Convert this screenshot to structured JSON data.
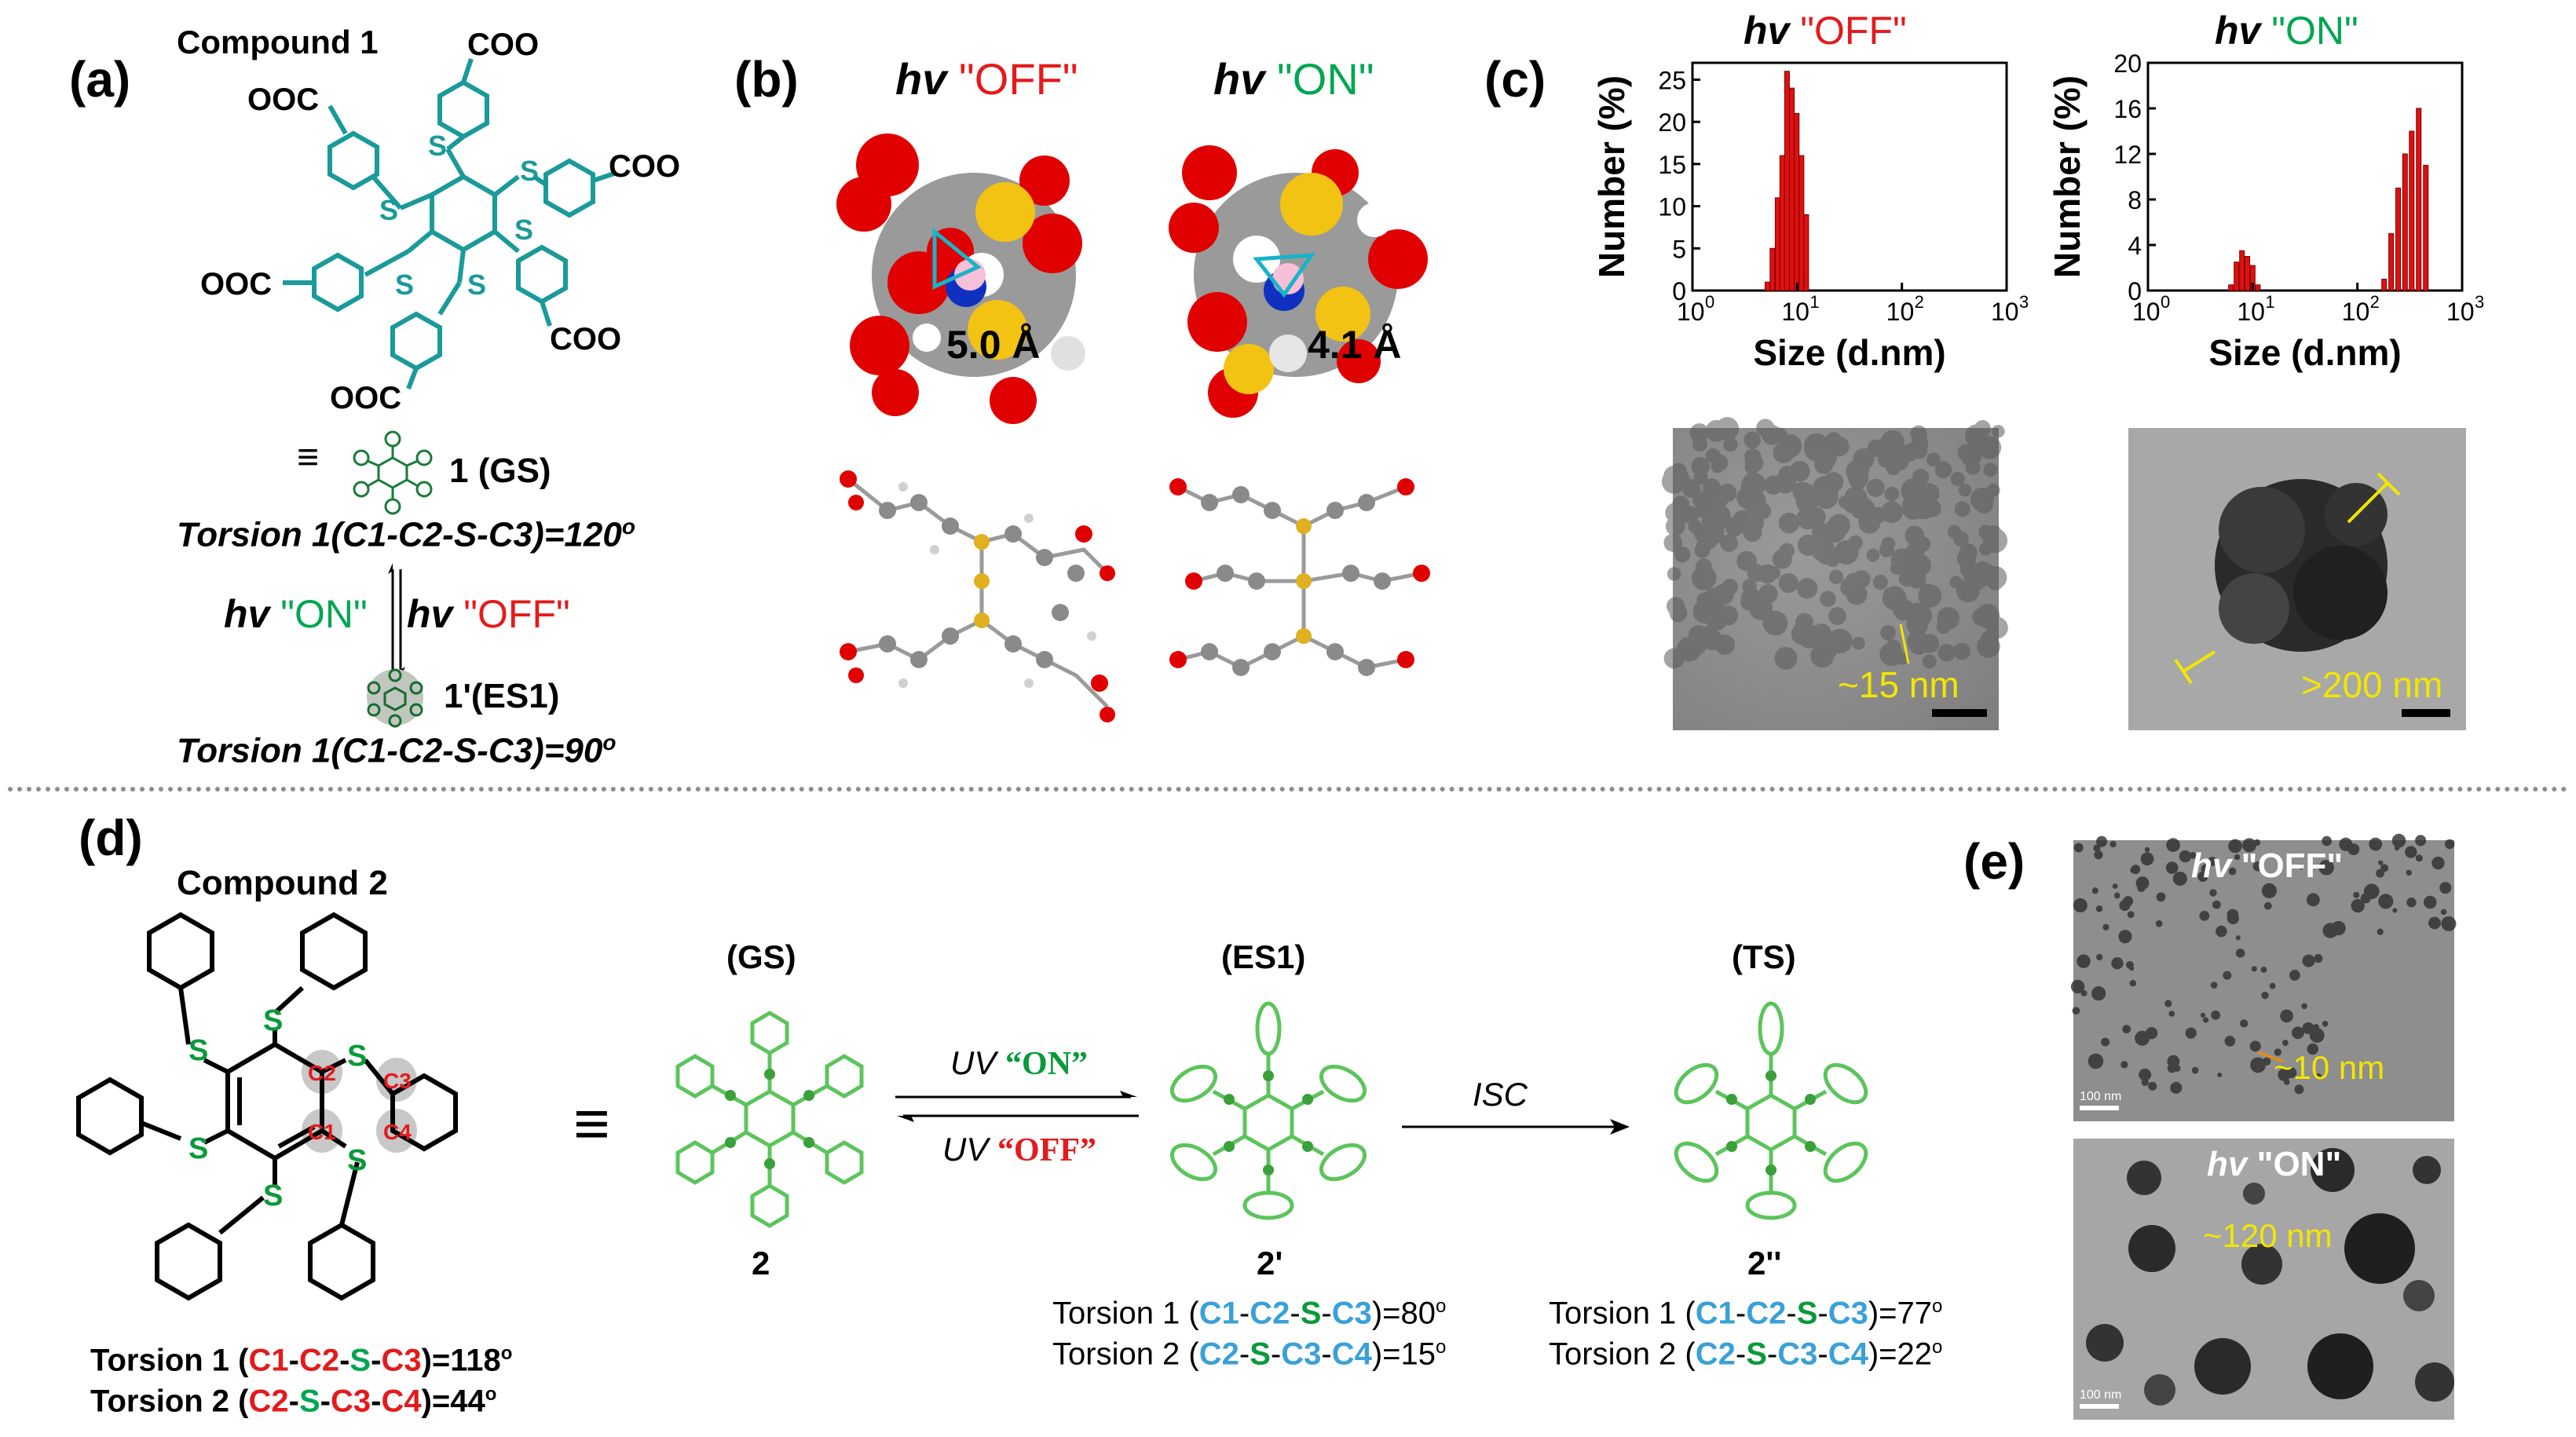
{
  "panels": {
    "a": "(a)",
    "b": "(b)",
    "c": "(c)",
    "d": "(d)",
    "e": "(e)"
  },
  "panel_a": {
    "compound_title": "Compound 1",
    "cooh_labels": [
      "COO",
      "OOC",
      "COO",
      "OOC",
      "COO",
      "OOC"
    ],
    "s_labels": [
      "S",
      "S",
      "S",
      "S",
      "S",
      "S"
    ],
    "equiv": "≡",
    "gs_label": "1 (GS)",
    "torsion_gs": "Torsion 1(C1-C2-S-C3)=120",
    "deg": "o",
    "hv": "hv",
    "on": "\"ON\"",
    "off": "\"OFF\"",
    "es1_label": "1'(ES1)",
    "torsion_es1": "Torsion 1(C1-C2-S-C3)=90"
  },
  "panel_b": {
    "hv": "hv",
    "off": "\"OFF\"",
    "on": "\"ON\"",
    "dist_off": "5.0 Å",
    "dist_on": "4.1 Å"
  },
  "panel_c": {
    "hv": "hv",
    "off": "\"OFF\"",
    "on": "\"ON\"",
    "ylabel": "Number (%)",
    "xlabel": "Size (d.nm)",
    "tem_off_label": "~15 nm",
    "tem_on_label": ">200 nm"
  },
  "chart_data": [
    {
      "type": "bar",
      "title": "hv \"OFF\"",
      "xlabel": "Size (d.nm)",
      "ylabel": "Number (%)",
      "xscale": "log",
      "xlim": [
        1,
        1000
      ],
      "ylim": [
        0,
        27
      ],
      "yticks": [
        0,
        5,
        10,
        15,
        20,
        25
      ],
      "xtick_labels": [
        "10^0",
        "10^1",
        "10^2",
        "10^3"
      ],
      "x": [
        5.2,
        5.8,
        6.5,
        7.2,
        8.0,
        8.9,
        9.9,
        11.0,
        12.2
      ],
      "values": [
        1,
        5,
        11,
        16,
        26,
        24,
        21,
        16,
        9
      ]
    },
    {
      "type": "bar",
      "title": "hv \"ON\"",
      "xlabel": "Size (d.nm)",
      "ylabel": "Number (%)",
      "xscale": "log",
      "xlim": [
        1,
        1000
      ],
      "ylim": [
        0,
        20
      ],
      "yticks": [
        0,
        4,
        8,
        12,
        16,
        20
      ],
      "xtick_labels": [
        "10^0",
        "10^1",
        "10^2",
        "10^3"
      ],
      "x": [
        6.2,
        7.0,
        7.9,
        8.9,
        10.0,
        11.2,
        180,
        210,
        245,
        285,
        330,
        385,
        450
      ],
      "values": [
        0.5,
        2.5,
        3.5,
        3.0,
        2.2,
        0.5,
        1,
        5,
        9,
        12,
        14,
        16,
        11
      ]
    }
  ],
  "panel_d": {
    "compound_title": "Compound 2",
    "atoms": [
      "C2",
      "C3",
      "C1",
      "C4"
    ],
    "s": "S",
    "equiv": "≡",
    "gs": "(GS)",
    "es1": "(ES1)",
    "ts": "(TS)",
    "num_2": "2",
    "num_2p": "2'",
    "num_2pp": "2''",
    "uv": "UV",
    "on": "“ON”",
    "off": "“OFF”",
    "isc": "ISC",
    "t1_prefix": "Torsion 1 (",
    "t2_prefix": "Torsion 2 (",
    "c1": "C1",
    "c2": "C2",
    "c3": "C3",
    "c4": "C4",
    "sdash": "S",
    "gs_t1_val": ")=118",
    "gs_t2_val": ")=44",
    "es1_t1_val": ")=80",
    "es1_t2_val": ")=15",
    "ts_t1_val": ")=77",
    "ts_t2_val": ")=22",
    "deg": "o"
  },
  "panel_e": {
    "hv": "hv",
    "off": "\"OFF\"",
    "on": "\"ON\"",
    "off_size": "~10 nm",
    "on_size": "~120 nm",
    "scale": "100 nm"
  },
  "colors": {
    "teal": "#1a9a9a",
    "green": "#5cc45c",
    "dark_green": "#0a9a3a",
    "red": "#e41a1c",
    "blue_atom": "#3aa0d8",
    "bar_red": "#e01010"
  }
}
